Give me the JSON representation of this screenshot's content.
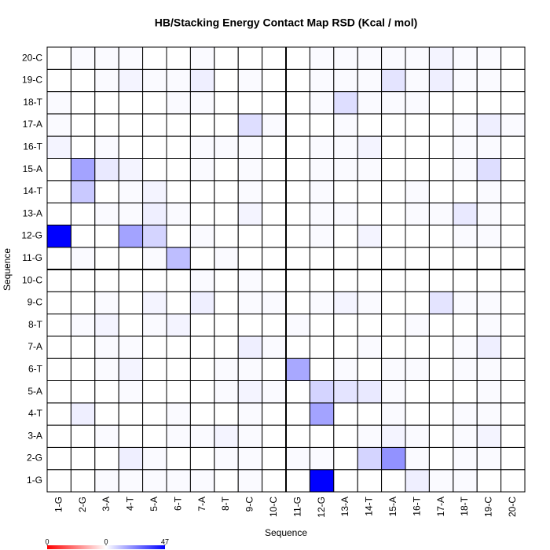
{
  "chart_data": {
    "type": "heatmap",
    "title": "HB/Stacking Energy Contact Map RSD (Kcal / mol)",
    "x_label": "Sequence",
    "y_label": "Sequence",
    "categories": [
      "1-G",
      "2-G",
      "3-A",
      "4-T",
      "5-A",
      "6-T",
      "7-A",
      "8-T",
      "9-C",
      "10-C",
      "11-G",
      "12-G",
      "13-A",
      "14-T",
      "15-A",
      "16-T",
      "17-A",
      "18-T",
      "19-C",
      "20-C"
    ],
    "low_color": "#ff0000",
    "mid_color": "#ffffff",
    "high_color": "#0000ff",
    "zlim": [
      0,
      47
    ],
    "zticks": [
      {
        "value": -0.2,
        "label": "0"
      },
      0,
      47
    ],
    "z": [
      [
        0,
        0,
        1,
        1,
        1,
        1,
        1,
        0,
        1,
        0,
        0,
        47,
        0,
        0,
        0,
        3,
        1,
        1,
        0,
        0
      ],
      [
        0,
        0,
        0,
        3,
        1,
        0,
        0,
        1,
        1,
        0,
        1,
        1,
        0,
        8,
        20,
        1,
        0,
        1,
        1,
        0
      ],
      [
        0,
        0,
        1,
        0,
        0,
        1,
        1,
        2,
        1,
        0,
        0,
        0,
        0,
        1,
        2,
        1,
        0,
        1,
        2,
        0
      ],
      [
        0,
        3,
        0,
        0,
        0,
        1,
        0,
        0,
        1,
        0,
        0,
        17,
        0,
        0,
        1,
        0,
        0,
        1,
        1,
        0
      ],
      [
        0,
        0,
        0,
        1,
        0,
        0,
        0,
        1,
        2,
        1,
        0,
        8,
        5,
        4,
        1,
        0,
        0,
        0,
        1,
        0
      ],
      [
        0,
        0,
        1,
        2,
        0,
        0,
        0,
        1,
        1,
        0,
        16,
        0,
        1,
        0,
        1,
        1,
        0,
        1,
        1,
        0
      ],
      [
        0,
        0,
        1,
        1,
        0,
        0,
        0,
        0,
        3,
        1,
        0,
        0,
        0,
        1,
        0,
        0,
        0,
        1,
        3,
        0
      ],
      [
        0,
        1,
        2,
        0,
        1,
        2,
        0,
        0,
        0,
        0,
        1,
        0,
        0,
        0,
        0,
        1,
        0,
        0,
        1,
        0
      ],
      [
        0,
        0,
        1,
        0,
        2,
        0,
        3,
        0,
        1,
        1,
        0,
        1,
        2,
        1,
        0,
        0,
        5,
        1,
        1,
        0
      ],
      [
        0,
        0,
        0,
        0,
        0,
        0,
        1,
        0,
        1,
        0,
        0,
        0,
        0,
        0,
        0,
        0,
        0,
        0,
        0,
        0
      ],
      [
        0,
        1,
        0,
        0,
        1,
        12,
        0,
        1,
        0,
        0,
        0,
        0,
        0,
        0,
        0,
        0,
        0,
        0,
        0,
        0
      ],
      [
        47,
        0,
        0,
        17,
        8,
        0,
        1,
        0,
        0,
        0,
        0,
        1,
        0,
        2,
        0,
        0,
        0,
        1,
        1,
        0
      ],
      [
        0,
        0,
        1,
        1,
        3,
        1,
        0,
        0,
        2,
        0,
        0,
        1,
        1,
        0,
        0,
        1,
        1,
        4,
        1,
        0
      ],
      [
        0,
        10,
        0,
        1,
        2,
        0,
        0,
        0,
        1,
        0,
        0,
        1,
        0,
        0,
        0,
        1,
        0,
        0,
        1,
        0
      ],
      [
        0,
        17,
        4,
        2,
        0,
        0,
        1,
        0,
        1,
        0,
        0,
        1,
        1,
        1,
        0,
        0,
        0,
        1,
        6,
        0
      ],
      [
        2,
        0,
        1,
        0,
        0,
        0,
        1,
        1,
        1,
        0,
        0,
        1,
        1,
        2,
        0,
        0,
        0,
        1,
        1,
        0
      ],
      [
        1,
        0,
        0,
        0,
        0,
        0,
        0,
        0,
        6,
        1,
        0,
        0,
        1,
        0,
        0,
        0,
        0,
        1,
        3,
        1
      ],
      [
        1,
        0,
        0,
        0,
        0,
        1,
        1,
        0,
        0,
        0,
        0,
        1,
        6,
        1,
        1,
        1,
        0,
        0,
        0,
        0
      ],
      [
        0,
        0,
        1,
        2,
        1,
        1,
        3,
        0,
        1,
        0,
        0,
        1,
        1,
        1,
        5,
        1,
        3,
        1,
        1,
        0
      ],
      [
        0,
        1,
        1,
        1,
        0,
        0,
        1,
        0,
        0,
        0,
        0,
        1,
        1,
        1,
        1,
        1,
        2,
        1,
        1,
        0
      ]
    ]
  }
}
